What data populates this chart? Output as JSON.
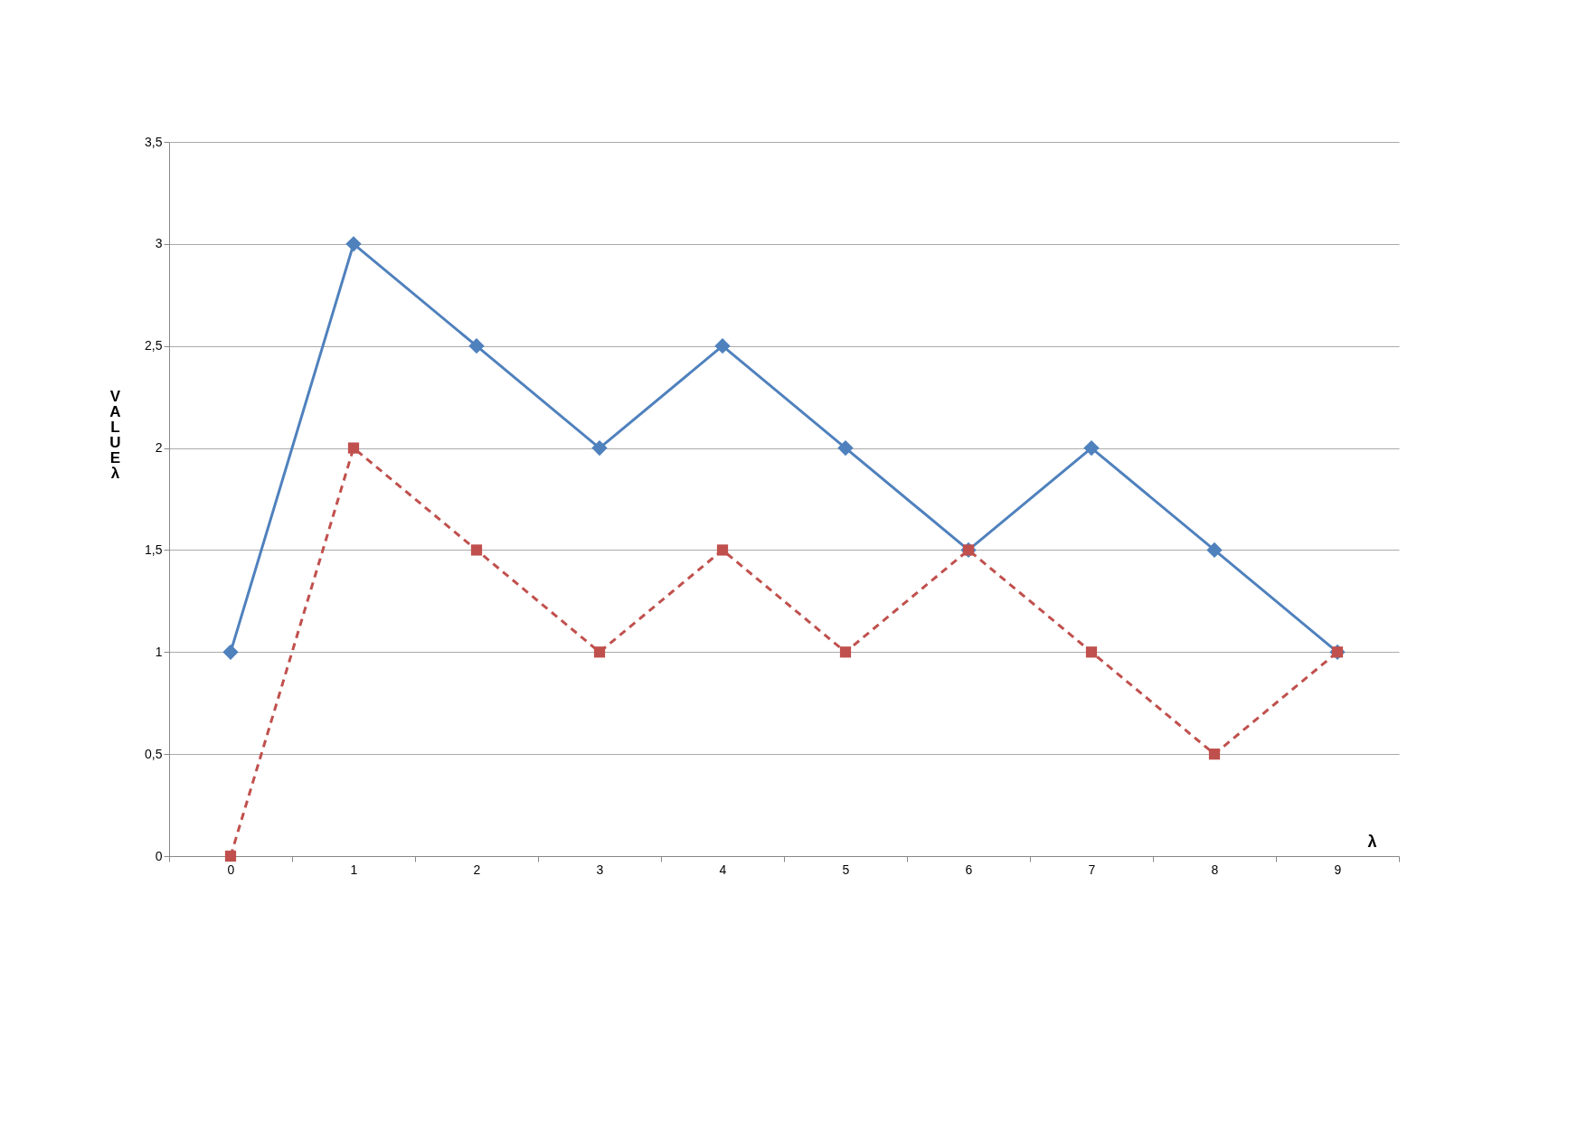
{
  "chart_data": {
    "type": "line",
    "xlabel": "λ",
    "ylabel": "VALUE λ",
    "categories": [
      "0",
      "1",
      "2",
      "3",
      "4",
      "5",
      "6",
      "7",
      "8",
      "9"
    ],
    "series": [
      {
        "color": "#4f81bd",
        "marker": "diamond",
        "line_style": "solid",
        "values": [
          1,
          3,
          2.5,
          2,
          2.5,
          2,
          1.5,
          2,
          1.5,
          1
        ]
      },
      {
        "color": "#c0504d",
        "marker": "square",
        "line_style": "dashed",
        "values": [
          0,
          2,
          1.5,
          1,
          1.5,
          1,
          1.5,
          1,
          0.5,
          1
        ]
      }
    ],
    "ylim": [
      0,
      3.5
    ],
    "yticks": [
      0,
      {
        "value": 0.5,
        "label": "0,5"
      },
      1,
      {
        "value": 1.5,
        "label": "1,5"
      },
      2,
      {
        "value": 2.5,
        "label": "2,5"
      },
      3,
      {
        "value": 3.5,
        "label": "3,5"
      }
    ],
    "grid": "y"
  }
}
